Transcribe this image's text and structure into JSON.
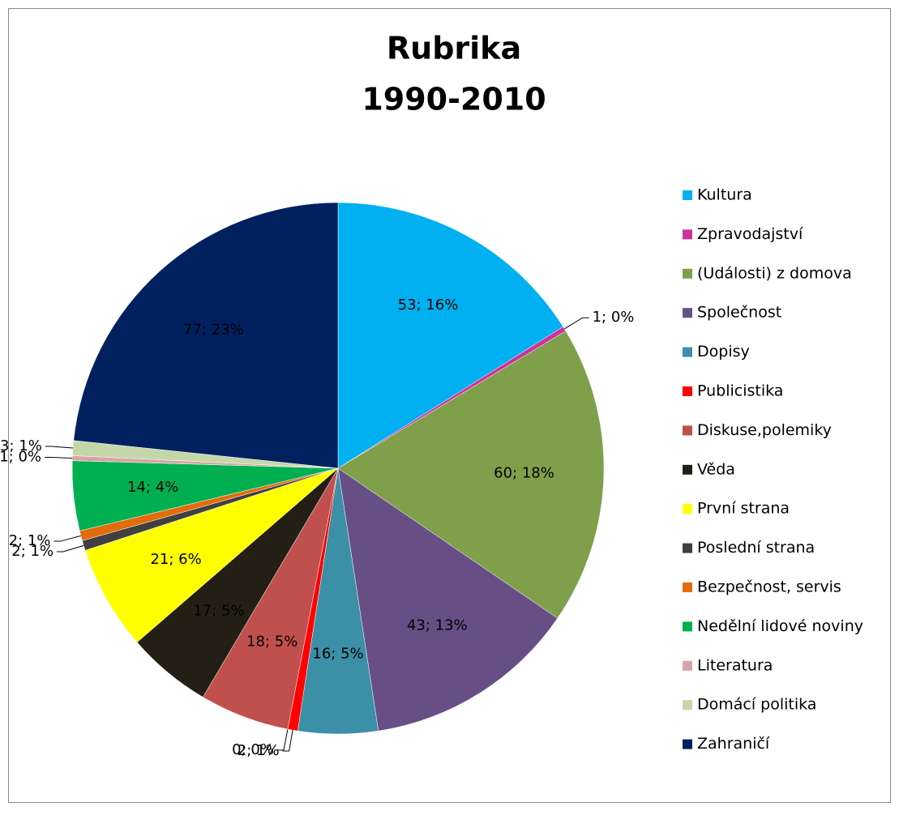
{
  "chart_data": {
    "type": "pie",
    "title": [
      "Rubrika",
      "1990-2010"
    ],
    "categories": [
      "Kultura",
      "Zpravodajství",
      "(Události) z domova",
      "Společnost",
      "Dopisy",
      "Publicistika",
      null,
      "Diskuse,polemiky",
      "Věda",
      "První strana",
      "Poslední strana",
      "Bezpečnost, servis",
      "Nedělní lidové noviny",
      "Literatura",
      "Domácí politika",
      "Zahraničí"
    ],
    "values": [
      53,
      1,
      60,
      43,
      16,
      2,
      0,
      18,
      17,
      21,
      2,
      2,
      14,
      1,
      3,
      77
    ],
    "value_labels": [
      "53; 16%",
      "1; 0%",
      "60; 18%",
      "43; 13%",
      "16; 5%",
      "2; 1%",
      "0; 0%",
      "18; 5%",
      "17; 5%",
      "21; 6%",
      "2; 1%",
      "2; 1%",
      "14; 4%",
      "1; 0%",
      "3; 1%",
      "77; 23%"
    ],
    "colors": [
      "#00b0f0",
      "#cc3399",
      "#7f9f4a",
      "#674f86",
      "#3b8fa6",
      "#ff0000",
      "#999999",
      "#c0504d",
      "#231f14",
      "#ffff00",
      "#404040",
      "#e36c0a",
      "#00b050",
      "#d9a5a4",
      "#c4d7a8",
      "#002060"
    ],
    "legend": "right"
  }
}
